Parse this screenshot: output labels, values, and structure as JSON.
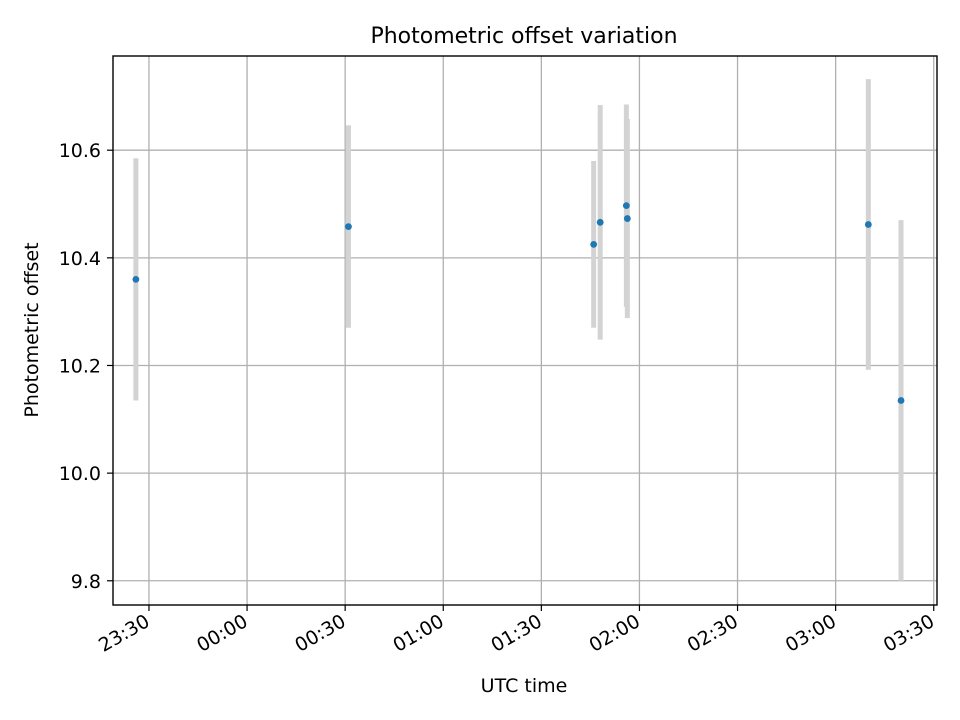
{
  "chart_data": {
    "type": "scatter",
    "title": "Photometric offset variation",
    "xlabel": "UTC time",
    "ylabel": "Photometric offset",
    "x_axis_type": "time",
    "xlim": [
      "23:19",
      "03:31"
    ],
    "ylim": [
      9.755,
      10.775
    ],
    "grid": true,
    "legend": "none",
    "marker_color": "#1f77b4",
    "errorbar_color": "#d3d3d3",
    "x_ticks": [
      "23:30",
      "00:00",
      "00:30",
      "01:00",
      "01:30",
      "02:00",
      "02:30",
      "03:00",
      "03:30"
    ],
    "y_ticks": [
      "9.8",
      "10.0",
      "10.2",
      "10.4",
      "10.6"
    ],
    "points": [
      {
        "x": "23:26",
        "y": 10.36,
        "yerr": 0.225
      },
      {
        "x": "00:31",
        "y": 10.458,
        "yerr": 0.188
      },
      {
        "x": "01:46",
        "y": 10.425,
        "yerr": 0.155
      },
      {
        "x": "01:48",
        "y": 10.466,
        "yerr": 0.218
      },
      {
        "x": "01:56",
        "y": 10.497,
        "yerr": 0.188
      },
      {
        "x": "01:56.3",
        "y": 10.473,
        "yerr": 0.185
      },
      {
        "x": "03:10",
        "y": 10.462,
        "yerr": 0.27
      },
      {
        "x": "03:20",
        "y": 10.135,
        "yerr": 0.335
      }
    ]
  }
}
